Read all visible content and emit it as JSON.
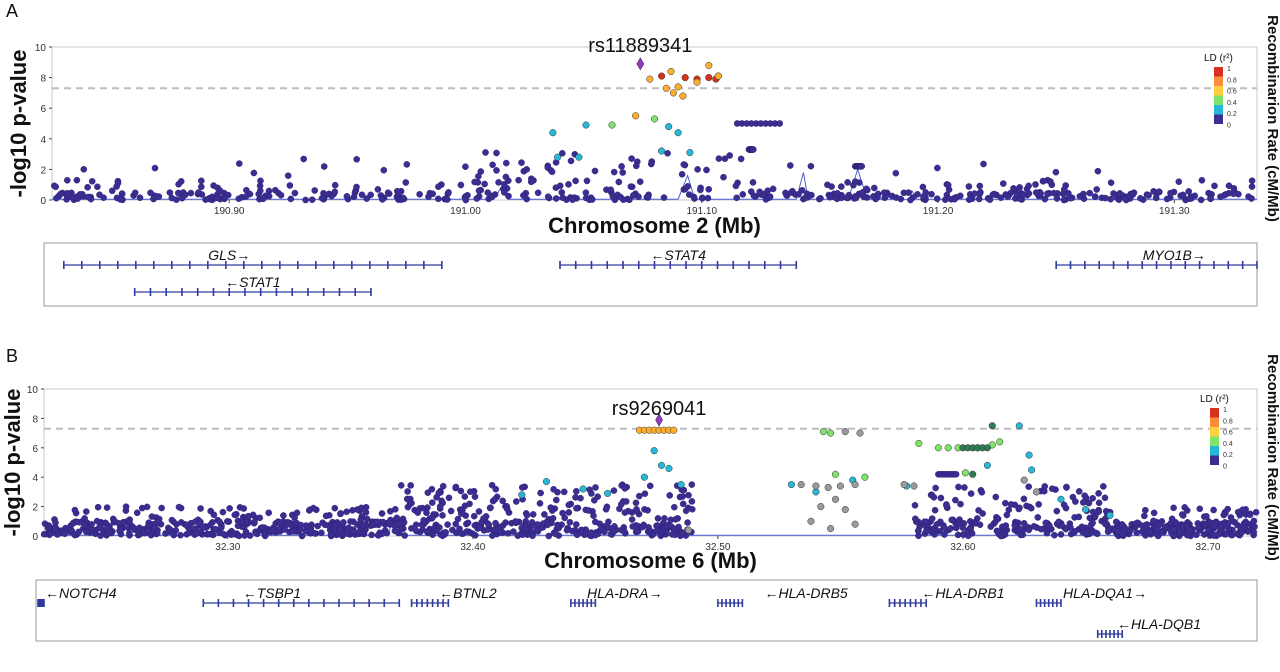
{
  "chart_data": [
    {
      "panel": "A",
      "type": "scatter",
      "lead_snp": "rs11889341",
      "xlabel": "Chromosome 2 (Mb)",
      "ylabel": "-log10 p-value",
      "ylabel2": "Recombinarion Rate  (cM/Mb)",
      "xlim": [
        190.825,
        191.335
      ],
      "ylim": [
        0,
        10
      ],
      "x_ticks": [
        "190.90",
        "191.00",
        "191.10",
        "191.20",
        "191.30"
      ],
      "x_tick_values": [
        190.9,
        191.0,
        191.1,
        191.2,
        191.3
      ],
      "y_ticks": [
        0,
        2,
        4,
        6,
        8,
        10
      ],
      "significance_line": 7.3,
      "legend": {
        "title": "LD (r²)",
        "ticks": [
          "1",
          "0.8",
          "0.6",
          "0.4",
          "0.2",
          "0"
        ],
        "placement": "top-right"
      },
      "lead_point": {
        "x": 191.074,
        "y": 8.9
      },
      "series": [
        {
          "ld_class": "red",
          "color": "#d7301f",
          "points": [
            [
              191.083,
              8.1
            ],
            [
              191.093,
              8.0
            ],
            [
              191.098,
              7.9
            ],
            [
              191.103,
              8.0
            ],
            [
              191.107,
              8.1
            ],
            [
              191.106,
              7.9
            ]
          ]
        },
        {
          "ld_class": "orange",
          "color": "#fdae2d",
          "points": [
            [
              191.078,
              7.9
            ],
            [
              191.087,
              8.4
            ],
            [
              191.085,
              7.3
            ],
            [
              191.088,
              7.0
            ],
            [
              191.092,
              6.8
            ],
            [
              191.09,
              7.4
            ],
            [
              191.103,
              8.8
            ],
            [
              191.107,
              8.1
            ],
            [
              191.072,
              5.5
            ],
            [
              191.098,
              7.7
            ]
          ]
        },
        {
          "ld_class": "green",
          "color": "#7fe36a",
          "points": [
            [
              191.062,
              4.9
            ],
            [
              191.08,
              5.3
            ]
          ]
        },
        {
          "ld_class": "cyan",
          "color": "#26b8d6",
          "points": [
            [
              191.037,
              4.4
            ],
            [
              191.051,
              4.9
            ],
            [
              191.039,
              2.8
            ],
            [
              191.048,
              2.8
            ],
            [
              191.083,
              3.2
            ],
            [
              191.09,
              4.4
            ],
            [
              191.095,
              3.1
            ],
            [
              191.086,
              4.8
            ]
          ]
        }
      ],
      "background_series": {
        "ld_class": "navy",
        "color": "#3b2d91",
        "max_y": 5.0,
        "clusters": [
          [
            191.115,
            191.135,
            5.0
          ],
          [
            191.12,
            191.122,
            3.3
          ],
          [
            191.165,
            191.168,
            2.2
          ]
        ]
      },
      "recombination_rate": [
        [
          190.825,
          0.05
        ],
        [
          191.012,
          0.05
        ],
        [
          191.015,
          0.8
        ],
        [
          191.018,
          0.05
        ],
        [
          191.09,
          0.05
        ],
        [
          191.094,
          1.6
        ],
        [
          191.097,
          0.05
        ],
        [
          191.14,
          0.05
        ],
        [
          191.143,
          1.8
        ],
        [
          191.145,
          0.05
        ],
        [
          191.162,
          0.05
        ],
        [
          191.166,
          2.0
        ],
        [
          191.17,
          0.05
        ],
        [
          191.188,
          0.05
        ],
        [
          191.189,
          0.6
        ],
        [
          191.191,
          0.05
        ],
        [
          191.335,
          0.05
        ]
      ],
      "genes": [
        {
          "label": "GLS→",
          "start": 190.83,
          "end": 190.99,
          "row": 1,
          "label_x": 190.9
        },
        {
          "label": "←STAT4",
          "start": 191.04,
          "end": 191.14,
          "row": 1,
          "label_x": 191.09
        },
        {
          "label": "MYO1B→",
          "start": 191.25,
          "end": 191.34,
          "row": 1,
          "label_x": 191.3
        },
        {
          "label": "←STAT1",
          "start": 190.86,
          "end": 190.96,
          "row": 2,
          "label_x": 190.91
        }
      ]
    },
    {
      "panel": "B",
      "type": "scatter",
      "lead_snp": "rs9269041",
      "xlabel": "Chromosome 6 (Mb)",
      "ylabel": "-log10 p-value",
      "ylabel2": "Recombinarion Rate  (cM/Mb)",
      "xlim": [
        32.225,
        32.72
      ],
      "ylim": [
        0,
        10
      ],
      "x_ticks": [
        "32.30",
        "32.40",
        "32.50",
        "32.60",
        "32.70"
      ],
      "x_tick_values": [
        32.3,
        32.4,
        32.5,
        32.6,
        32.7
      ],
      "y_ticks": [
        0,
        2,
        4,
        6,
        8,
        10
      ],
      "significance_line": 7.3,
      "legend": {
        "title": "LD (r²)",
        "ticks": [
          "1",
          "0.8",
          "0.6",
          "0.4",
          "0.2",
          "0"
        ],
        "placement": "top-right"
      },
      "lead_point": {
        "x": 32.476,
        "y": 7.9
      },
      "series": [
        {
          "ld_class": "orange",
          "color": "#fdae2d",
          "points": [
            [
              32.468,
              7.2
            ],
            [
              32.47,
              7.2
            ],
            [
              32.472,
              7.2
            ],
            [
              32.474,
              7.2
            ],
            [
              32.476,
              7.2
            ],
            [
              32.478,
              7.2
            ],
            [
              32.48,
              7.2
            ],
            [
              32.482,
              7.2
            ]
          ]
        },
        {
          "ld_class": "green",
          "color": "#7fe36a",
          "points": [
            [
              32.543,
              7.1
            ],
            [
              32.546,
              7.0
            ],
            [
              32.582,
              6.3
            ],
            [
              32.59,
              6.0
            ],
            [
              32.594,
              6.0
            ],
            [
              32.598,
              6.0
            ],
            [
              32.606,
              6.0
            ],
            [
              32.612,
              6.2
            ],
            [
              32.615,
              6.4
            ],
            [
              32.548,
              4.2
            ],
            [
              32.56,
              4.0
            ],
            [
              32.601,
              4.3
            ]
          ]
        },
        {
          "ld_class": "darkgreen",
          "color": "#2e7d52",
          "points": [
            [
              32.6,
              6.0
            ],
            [
              32.602,
              6.0
            ],
            [
              32.604,
              6.0
            ],
            [
              32.606,
              6.0
            ],
            [
              32.608,
              6.0
            ],
            [
              32.61,
              6.0
            ],
            [
              32.612,
              7.5
            ],
            [
              32.604,
              4.2
            ]
          ]
        },
        {
          "ld_class": "cyan",
          "color": "#26b8d6",
          "points": [
            [
              32.474,
              5.8
            ],
            [
              32.477,
              4.8
            ],
            [
              32.48,
              4.6
            ],
            [
              32.47,
              4.0
            ],
            [
              32.485,
              3.5
            ],
            [
              32.43,
              3.7
            ],
            [
              32.42,
              2.8
            ],
            [
              32.445,
              3.2
            ],
            [
              32.455,
              2.9
            ],
            [
              32.53,
              3.5
            ],
            [
              32.54,
              3.0
            ],
            [
              32.555,
              3.8
            ],
            [
              32.577,
              3.4
            ],
            [
              32.623,
              7.5
            ],
            [
              32.627,
              5.5
            ],
            [
              32.628,
              4.5
            ],
            [
              32.61,
              4.8
            ],
            [
              32.64,
              2.5
            ],
            [
              32.65,
              1.8
            ],
            [
              32.66,
              1.4
            ]
          ]
        },
        {
          "ld_class": "grey",
          "color": "#9a9a9a",
          "points": [
            [
              32.534,
              3.5
            ],
            [
              32.54,
              3.4
            ],
            [
              32.545,
              3.3
            ],
            [
              32.55,
              3.4
            ],
            [
              32.556,
              3.5
            ],
            [
              32.542,
              2.0
            ],
            [
              32.548,
              2.5
            ],
            [
              32.552,
              1.8
            ],
            [
              32.538,
              1.0
            ],
            [
              32.546,
              0.5
            ],
            [
              32.556,
              0.8
            ],
            [
              32.552,
              7.1
            ],
            [
              32.558,
              7.0
            ],
            [
              32.58,
              3.4
            ],
            [
              32.576,
              3.5
            ],
            [
              32.625,
              3.8
            ],
            [
              32.63,
              3.0
            ],
            [
              32.488,
              0.4
            ]
          ]
        }
      ],
      "background_series": {
        "ld_class": "navy",
        "color": "#3b2d91",
        "max_y": 4.9,
        "clusters": [
          [
            32.59,
            32.598,
            4.2
          ]
        ]
      },
      "recombination_rate": [
        [
          32.225,
          0.05
        ],
        [
          32.365,
          0.05
        ],
        [
          32.367,
          0.8
        ],
        [
          32.369,
          0.05
        ],
        [
          32.71,
          0.05
        ],
        [
          32.714,
          2.0
        ],
        [
          32.718,
          0.05
        ]
      ],
      "genes": [
        {
          "label": "←NOTCH4",
          "start": 32.22,
          "end": 32.225,
          "row": 1,
          "label_x": 32.24
        },
        {
          "label": "←TSBP1",
          "start": 32.29,
          "end": 32.37,
          "row": 1,
          "label_x": 32.318
        },
        {
          "label": "←BTNL2",
          "start": 32.375,
          "end": 32.39,
          "row": 1,
          "label_x": 32.398
        },
        {
          "label": "HLA-DRA→",
          "start": 32.44,
          "end": 32.45,
          "row": 1,
          "label_x": 32.462
        },
        {
          "label": "←HLA-DRB5",
          "start": 32.5,
          "end": 32.51,
          "row": 1,
          "label_x": 32.536
        },
        {
          "label": "←HLA-DRB1",
          "start": 32.57,
          "end": 32.585,
          "row": 1,
          "label_x": 32.6
        },
        {
          "label": "HLA-DQA1→",
          "start": 32.63,
          "end": 32.64,
          "row": 1,
          "label_x": 32.658
        },
        {
          "label": "←HLA-DQB1",
          "start": 32.655,
          "end": 32.665,
          "row": 2,
          "label_x": 32.68
        }
      ]
    }
  ]
}
